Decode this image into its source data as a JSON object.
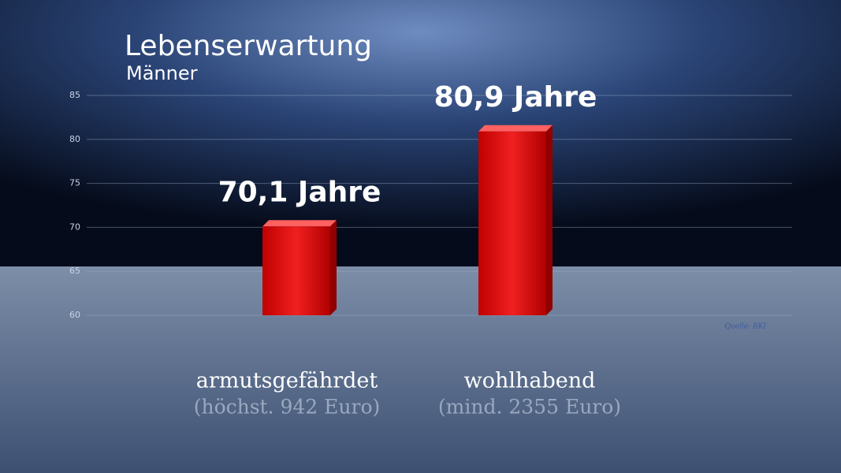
{
  "chart_data": {
    "type": "bar",
    "title": "Lebenserwartung",
    "subtitle": "Männer",
    "categories": [
      "armutsgefährdet",
      "wohlhabend"
    ],
    "category_notes": [
      "(höchst. 942 Euro)",
      "(mind. 2355 Euro)"
    ],
    "values": [
      70.1,
      80.9
    ],
    "value_labels": [
      "70,1 Jahre",
      "80,9 Jahre"
    ],
    "color": "#e01010",
    "ylim": [
      60,
      85
    ],
    "yticks": [
      60,
      65,
      70,
      75,
      80,
      85
    ],
    "grid": true,
    "source": "Quelle: RKI"
  }
}
